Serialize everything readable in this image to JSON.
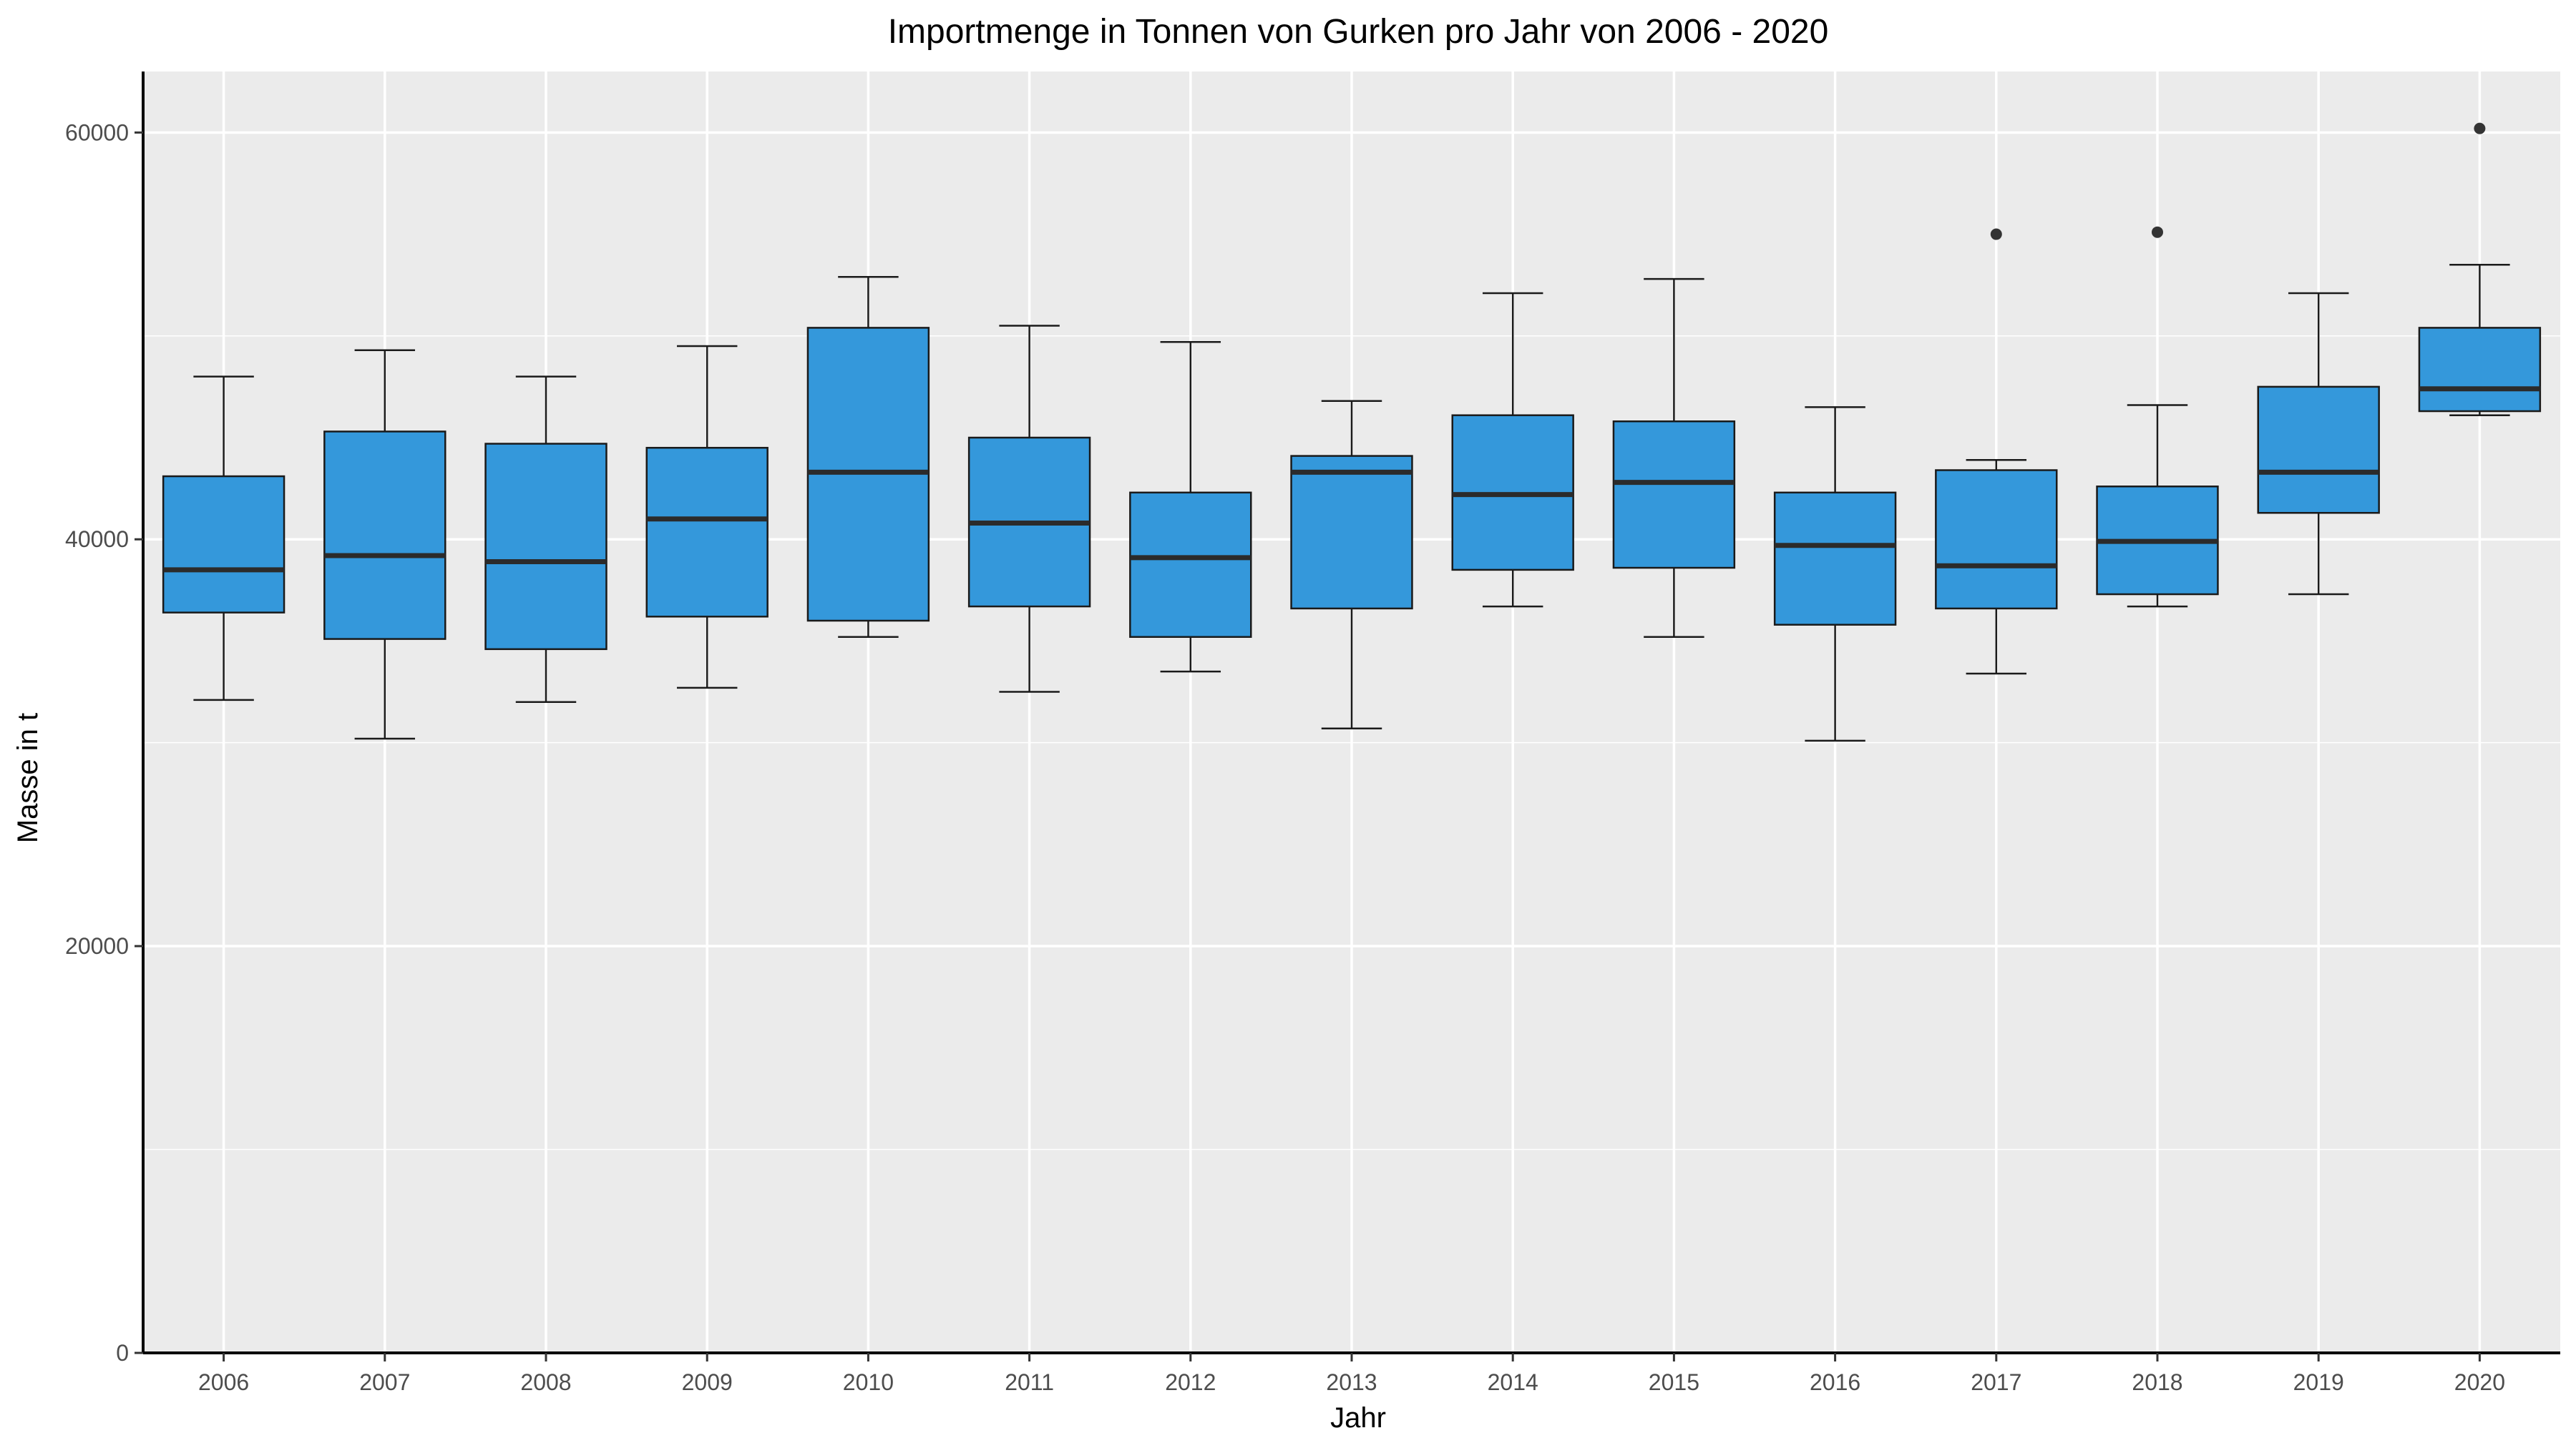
{
  "chart_data": {
    "type": "boxplot",
    "title": "Importmenge in Tonnen von Gurken pro Jahr von 2006 - 2020",
    "xlabel": "Jahr",
    "ylabel": "Masse in t",
    "ylim": [
      0,
      63000
    ],
    "yticks": [
      0,
      20000,
      40000,
      60000
    ],
    "y_tick_labels": [
      "0",
      "20000",
      "40000",
      "60000"
    ],
    "grid": true,
    "legend": "none",
    "colors": {
      "box_fill": "#3498db",
      "panel_bg": "#ebebeb",
      "grid": "#ffffff",
      "outline": "#1a1a1a"
    },
    "categories": [
      "2006",
      "2007",
      "2008",
      "2009",
      "2010",
      "2011",
      "2012",
      "2013",
      "2014",
      "2015",
      "2016",
      "2017",
      "2018",
      "2019",
      "2020"
    ],
    "boxes": [
      {
        "x": "2006",
        "min": 32100,
        "q1": 36400,
        "median": 38500,
        "q3": 43100,
        "max": 48000,
        "outliers": []
      },
      {
        "x": "2007",
        "min": 30200,
        "q1": 35100,
        "median": 39200,
        "q3": 45300,
        "max": 49300,
        "outliers": []
      },
      {
        "x": "2008",
        "min": 32000,
        "q1": 34600,
        "median": 38900,
        "q3": 44700,
        "max": 48000,
        "outliers": []
      },
      {
        "x": "2009",
        "min": 32700,
        "q1": 36200,
        "median": 41000,
        "q3": 44500,
        "max": 49500,
        "outliers": []
      },
      {
        "x": "2010",
        "min": 35200,
        "q1": 36000,
        "median": 43300,
        "q3": 50400,
        "max": 52900,
        "outliers": []
      },
      {
        "x": "2011",
        "min": 32500,
        "q1": 36700,
        "median": 40800,
        "q3": 45000,
        "max": 50500,
        "outliers": []
      },
      {
        "x": "2012",
        "min": 33500,
        "q1": 35200,
        "median": 39100,
        "q3": 42300,
        "max": 49700,
        "outliers": []
      },
      {
        "x": "2013",
        "min": 30700,
        "q1": 36600,
        "median": 43300,
        "q3": 44100,
        "max": 46800,
        "outliers": []
      },
      {
        "x": "2014",
        "min": 36700,
        "q1": 38500,
        "median": 42200,
        "q3": 46100,
        "max": 52100,
        "outliers": []
      },
      {
        "x": "2015",
        "min": 35200,
        "q1": 38600,
        "median": 42800,
        "q3": 45800,
        "max": 52800,
        "outliers": []
      },
      {
        "x": "2016",
        "min": 30100,
        "q1": 35800,
        "median": 39700,
        "q3": 42300,
        "max": 46500,
        "outliers": []
      },
      {
        "x": "2017",
        "min": 33400,
        "q1": 36600,
        "median": 38700,
        "q3": 43400,
        "max": 43900,
        "outliers": [
          55000
        ]
      },
      {
        "x": "2018",
        "min": 36700,
        "q1": 37300,
        "median": 39900,
        "q3": 42600,
        "max": 46600,
        "outliers": [
          55100
        ]
      },
      {
        "x": "2019",
        "min": 37300,
        "q1": 41300,
        "median": 43300,
        "q3": 47500,
        "max": 52100,
        "outliers": []
      },
      {
        "x": "2020",
        "min": 46100,
        "q1": 46300,
        "median": 47400,
        "q3": 50400,
        "max": 53500,
        "outliers": [
          60200
        ]
      }
    ]
  }
}
